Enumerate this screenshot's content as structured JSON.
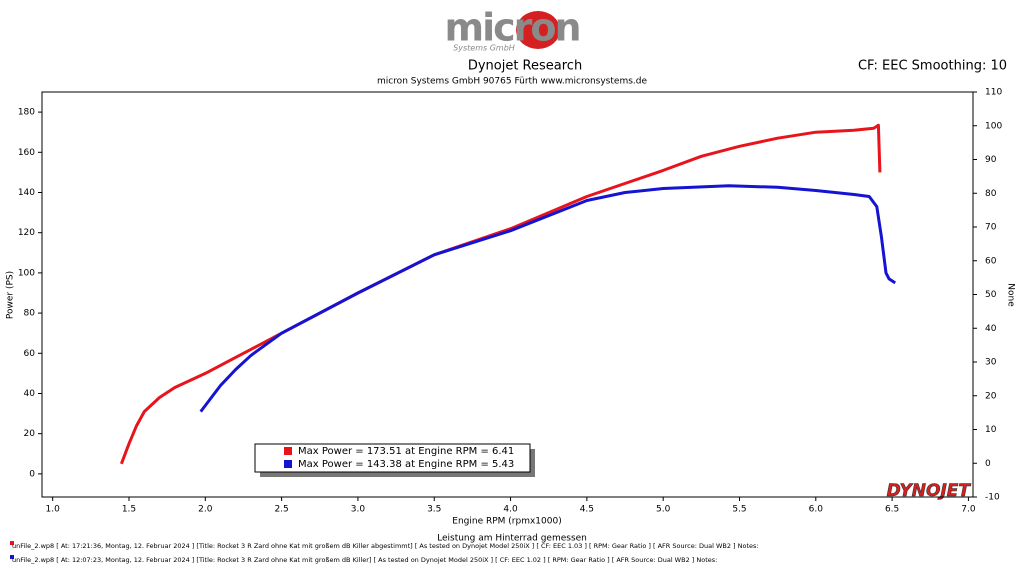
{
  "chart_data": {
    "type": "line",
    "logo": "micron",
    "logo_sub": "Systems GmbH",
    "title": "Dynojet Research",
    "subtitle": "micron Systems GmbH  90765 Fürth www.micronsystems.de",
    "corner_note": "CF: EEC Smoothing: 10",
    "y_label": "Power (PS)",
    "y2_label": "None",
    "x_label": "Engine RPM (rpmx1000)",
    "x_sublabel": "Leistung am Hinterrad gemessen",
    "brand": "DYNOJET",
    "grid": false,
    "xlim": [
      0.93,
      7.03
    ],
    "ylim": [
      -11.5,
      190
    ],
    "y2lim": [
      -10,
      110
    ],
    "xticks": [
      {
        "value": 1,
        "label": "1.0"
      },
      1.5,
      {
        "value": 2,
        "label": "2.0"
      },
      2.5,
      {
        "value": 3,
        "label": "3.0"
      },
      3.5,
      {
        "value": 4,
        "label": "4.0"
      },
      4.5,
      {
        "value": 5,
        "label": "5.0"
      },
      5.5,
      {
        "value": 6,
        "label": "6.0"
      },
      6.5,
      {
        "value": 7,
        "label": "7.0"
      }
    ],
    "yticks": [
      0,
      20,
      40,
      60,
      80,
      100,
      120,
      140,
      160,
      180
    ],
    "y2ticks": [
      -10,
      0,
      10,
      20,
      30,
      40,
      50,
      60,
      70,
      80,
      90,
      100,
      110
    ],
    "series": [
      {
        "name": "Max Power = 173.51 at Engine RPM = 6.41",
        "color": "#e8141c",
        "x": [
          1.45,
          1.5,
          1.55,
          1.6,
          1.7,
          1.8,
          2.0,
          2.2,
          2.3,
          2.5,
          3.0,
          3.5,
          4.0,
          4.5,
          5.0,
          5.25,
          5.5,
          5.75,
          6.0,
          6.25,
          6.38,
          6.41,
          6.42
        ],
        "values": [
          5,
          15,
          24,
          31,
          38,
          43,
          50,
          58,
          62,
          70,
          90,
          109,
          122,
          138,
          151,
          158,
          163,
          167,
          170,
          171,
          172,
          173.5,
          150
        ]
      },
      {
        "name": "Max Power = 143.38 at Engine RPM = 5.43",
        "color": "#1414d2",
        "x": [
          1.97,
          2.1,
          2.2,
          2.3,
          2.5,
          3.0,
          3.5,
          4.0,
          4.5,
          4.75,
          5.0,
          5.43,
          5.75,
          6.0,
          6.25,
          6.35,
          6.4,
          6.43,
          6.46,
          6.48,
          6.52
        ],
        "values": [
          31,
          44,
          52,
          59,
          70,
          90,
          109,
          121,
          136,
          140,
          142,
          143.4,
          142.6,
          141,
          139,
          138,
          133,
          118,
          100,
          97,
          95
        ]
      }
    ],
    "footer_lines": [
      "unFile_2.wp8 [ At: 17:21:36, Montag, 12. Februar 2024 ] [Title: Rocket 3 R Zard ohne Kat mit großem dB Killer abgestimmt]  [ As tested on Dynojet Model 250iX ] [ CF: EEC 1.03 ] [ RPM: Gear Ratio ] [ AFR Source: Dual WB2 ] Notes:",
      "unFile_2.wp8 [ At: 12:07:23, Montag, 12. Februar 2024 ] [Title: Rocket 3 R Zard ohne Kat mit großem dB Killer]  [ As tested on Dynojet Model 250iX ] [ CF: EEC 1.02 ] [ RPM: Gear Ratio ] [ AFR Source: Dual WB2 ] Notes:"
    ]
  }
}
